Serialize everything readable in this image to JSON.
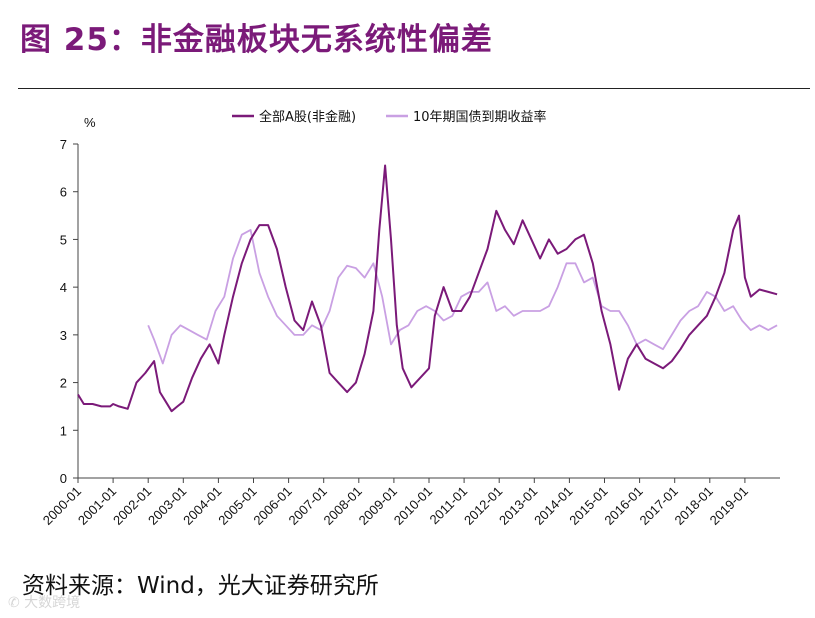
{
  "header": {
    "title": "图 25：非金融板块无系统性偏差"
  },
  "footer": {
    "source": "资料来源：Wind，光大证券研究所",
    "watermark": "✆ 大数跨境"
  },
  "colors": {
    "series_a": "#7b1a79",
    "series_b": "#c9a0e3",
    "title": "#7b1a79"
  },
  "chart_data": {
    "type": "line",
    "ylabel": "%",
    "ylim": [
      0,
      7
    ],
    "yticks": [
      0,
      1,
      2,
      3,
      4,
      5,
      6,
      7
    ],
    "xlim": [
      "2000-01",
      "2020-01"
    ],
    "xticks": [
      "2000-01",
      "2001-01",
      "2002-01",
      "2003-01",
      "2004-01",
      "2005-01",
      "2006-01",
      "2007-01",
      "2008-01",
      "2009-01",
      "2010-01",
      "2011-01",
      "2012-01",
      "2013-01",
      "2014-01",
      "2015-01",
      "2016-01",
      "2017-01",
      "2018-01",
      "2019-01"
    ],
    "legend_position": "top",
    "grid": false,
    "series": [
      {
        "name": "全部A股(非金融)",
        "color": "#7b1a79",
        "points": [
          [
            "2000-01",
            1.75
          ],
          [
            "2000-03",
            1.55
          ],
          [
            "2000-06",
            1.55
          ],
          [
            "2000-09",
            1.5
          ],
          [
            "2000-12",
            1.5
          ],
          [
            "2001-01",
            1.55
          ],
          [
            "2001-03",
            1.5
          ],
          [
            "2001-06",
            1.45
          ],
          [
            "2001-09",
            2.0
          ],
          [
            "2001-12",
            2.2
          ],
          [
            "2002-03",
            2.45
          ],
          [
            "2002-05",
            1.8
          ],
          [
            "2002-07",
            1.6
          ],
          [
            "2002-09",
            1.4
          ],
          [
            "2002-11",
            1.5
          ],
          [
            "2003-01",
            1.6
          ],
          [
            "2003-04",
            2.1
          ],
          [
            "2003-07",
            2.5
          ],
          [
            "2003-10",
            2.8
          ],
          [
            "2004-01",
            2.4
          ],
          [
            "2004-03",
            3.0
          ],
          [
            "2004-06",
            3.8
          ],
          [
            "2004-09",
            4.5
          ],
          [
            "2004-12",
            5.0
          ],
          [
            "2005-03",
            5.3
          ],
          [
            "2005-06",
            5.3
          ],
          [
            "2005-09",
            4.8
          ],
          [
            "2005-12",
            4.0
          ],
          [
            "2006-03",
            3.3
          ],
          [
            "2006-06",
            3.1
          ],
          [
            "2006-09",
            3.7
          ],
          [
            "2006-12",
            3.2
          ],
          [
            "2007-03",
            2.2
          ],
          [
            "2007-06",
            2.0
          ],
          [
            "2007-09",
            1.8
          ],
          [
            "2007-12",
            2.0
          ],
          [
            "2008-03",
            2.6
          ],
          [
            "2008-06",
            3.5
          ],
          [
            "2008-08",
            5.2
          ],
          [
            "2008-10",
            6.55
          ],
          [
            "2008-12",
            5.0
          ],
          [
            "2009-02",
            3.2
          ],
          [
            "2009-04",
            2.3
          ],
          [
            "2009-07",
            1.9
          ],
          [
            "2009-10",
            2.1
          ],
          [
            "2010-01",
            2.3
          ],
          [
            "2010-03",
            3.4
          ],
          [
            "2010-06",
            4.0
          ],
          [
            "2010-09",
            3.5
          ],
          [
            "2010-12",
            3.5
          ],
          [
            "2011-03",
            3.8
          ],
          [
            "2011-06",
            4.3
          ],
          [
            "2011-09",
            4.8
          ],
          [
            "2011-12",
            5.6
          ],
          [
            "2012-03",
            5.2
          ],
          [
            "2012-06",
            4.9
          ],
          [
            "2012-09",
            5.4
          ],
          [
            "2012-12",
            5.0
          ],
          [
            "2013-03",
            4.6
          ],
          [
            "2013-06",
            5.0
          ],
          [
            "2013-09",
            4.7
          ],
          [
            "2013-12",
            4.8
          ],
          [
            "2014-03",
            5.0
          ],
          [
            "2014-06",
            5.1
          ],
          [
            "2014-09",
            4.5
          ],
          [
            "2014-12",
            3.5
          ],
          [
            "2015-03",
            2.8
          ],
          [
            "2015-06",
            1.85
          ],
          [
            "2015-09",
            2.5
          ],
          [
            "2015-12",
            2.8
          ],
          [
            "2016-03",
            2.5
          ],
          [
            "2016-06",
            2.4
          ],
          [
            "2016-09",
            2.3
          ],
          [
            "2016-12",
            2.45
          ],
          [
            "2017-03",
            2.7
          ],
          [
            "2017-06",
            3.0
          ],
          [
            "2017-09",
            3.2
          ],
          [
            "2017-12",
            3.4
          ],
          [
            "2018-03",
            3.8
          ],
          [
            "2018-06",
            4.3
          ],
          [
            "2018-09",
            5.2
          ],
          [
            "2018-11",
            5.5
          ],
          [
            "2019-01",
            4.2
          ],
          [
            "2019-03",
            3.8
          ],
          [
            "2019-06",
            3.95
          ],
          [
            "2019-09",
            3.9
          ],
          [
            "2019-12",
            3.85
          ]
        ]
      },
      {
        "name": "10年期国债到期收益率",
        "color": "#c9a0e3",
        "points": [
          [
            "2002-01",
            3.2
          ],
          [
            "2002-03",
            2.9
          ],
          [
            "2002-06",
            2.4
          ],
          [
            "2002-09",
            3.0
          ],
          [
            "2002-12",
            3.2
          ],
          [
            "2003-03",
            3.1
          ],
          [
            "2003-06",
            3.0
          ],
          [
            "2003-09",
            2.9
          ],
          [
            "2003-12",
            3.5
          ],
          [
            "2004-03",
            3.8
          ],
          [
            "2004-06",
            4.6
          ],
          [
            "2004-09",
            5.1
          ],
          [
            "2004-12",
            5.2
          ],
          [
            "2005-03",
            4.3
          ],
          [
            "2005-06",
            3.8
          ],
          [
            "2005-09",
            3.4
          ],
          [
            "2005-12",
            3.2
          ],
          [
            "2006-03",
            3.0
          ],
          [
            "2006-06",
            3.0
          ],
          [
            "2006-09",
            3.2
          ],
          [
            "2006-12",
            3.1
          ],
          [
            "2007-03",
            3.5
          ],
          [
            "2007-06",
            4.2
          ],
          [
            "2007-09",
            4.45
          ],
          [
            "2007-12",
            4.4
          ],
          [
            "2008-03",
            4.2
          ],
          [
            "2008-06",
            4.5
          ],
          [
            "2008-09",
            3.8
          ],
          [
            "2008-12",
            2.8
          ],
          [
            "2009-03",
            3.1
          ],
          [
            "2009-06",
            3.2
          ],
          [
            "2009-09",
            3.5
          ],
          [
            "2009-12",
            3.6
          ],
          [
            "2010-03",
            3.5
          ],
          [
            "2010-06",
            3.3
          ],
          [
            "2010-09",
            3.4
          ],
          [
            "2010-12",
            3.8
          ],
          [
            "2011-03",
            3.9
          ],
          [
            "2011-06",
            3.9
          ],
          [
            "2011-09",
            4.1
          ],
          [
            "2011-12",
            3.5
          ],
          [
            "2012-03",
            3.6
          ],
          [
            "2012-06",
            3.4
          ],
          [
            "2012-09",
            3.5
          ],
          [
            "2012-12",
            3.5
          ],
          [
            "2013-03",
            3.5
          ],
          [
            "2013-06",
            3.6
          ],
          [
            "2013-09",
            4.0
          ],
          [
            "2013-12",
            4.5
          ],
          [
            "2014-03",
            4.5
          ],
          [
            "2014-06",
            4.1
          ],
          [
            "2014-09",
            4.2
          ],
          [
            "2014-12",
            3.6
          ],
          [
            "2015-03",
            3.5
          ],
          [
            "2015-06",
            3.5
          ],
          [
            "2015-09",
            3.2
          ],
          [
            "2015-12",
            2.8
          ],
          [
            "2016-03",
            2.9
          ],
          [
            "2016-06",
            2.8
          ],
          [
            "2016-09",
            2.7
          ],
          [
            "2016-12",
            3.0
          ],
          [
            "2017-03",
            3.3
          ],
          [
            "2017-06",
            3.5
          ],
          [
            "2017-09",
            3.6
          ],
          [
            "2017-12",
            3.9
          ],
          [
            "2018-03",
            3.8
          ],
          [
            "2018-06",
            3.5
          ],
          [
            "2018-09",
            3.6
          ],
          [
            "2018-12",
            3.3
          ],
          [
            "2019-03",
            3.1
          ],
          [
            "2019-06",
            3.2
          ],
          [
            "2019-09",
            3.1
          ],
          [
            "2019-12",
            3.2
          ]
        ]
      }
    ]
  }
}
